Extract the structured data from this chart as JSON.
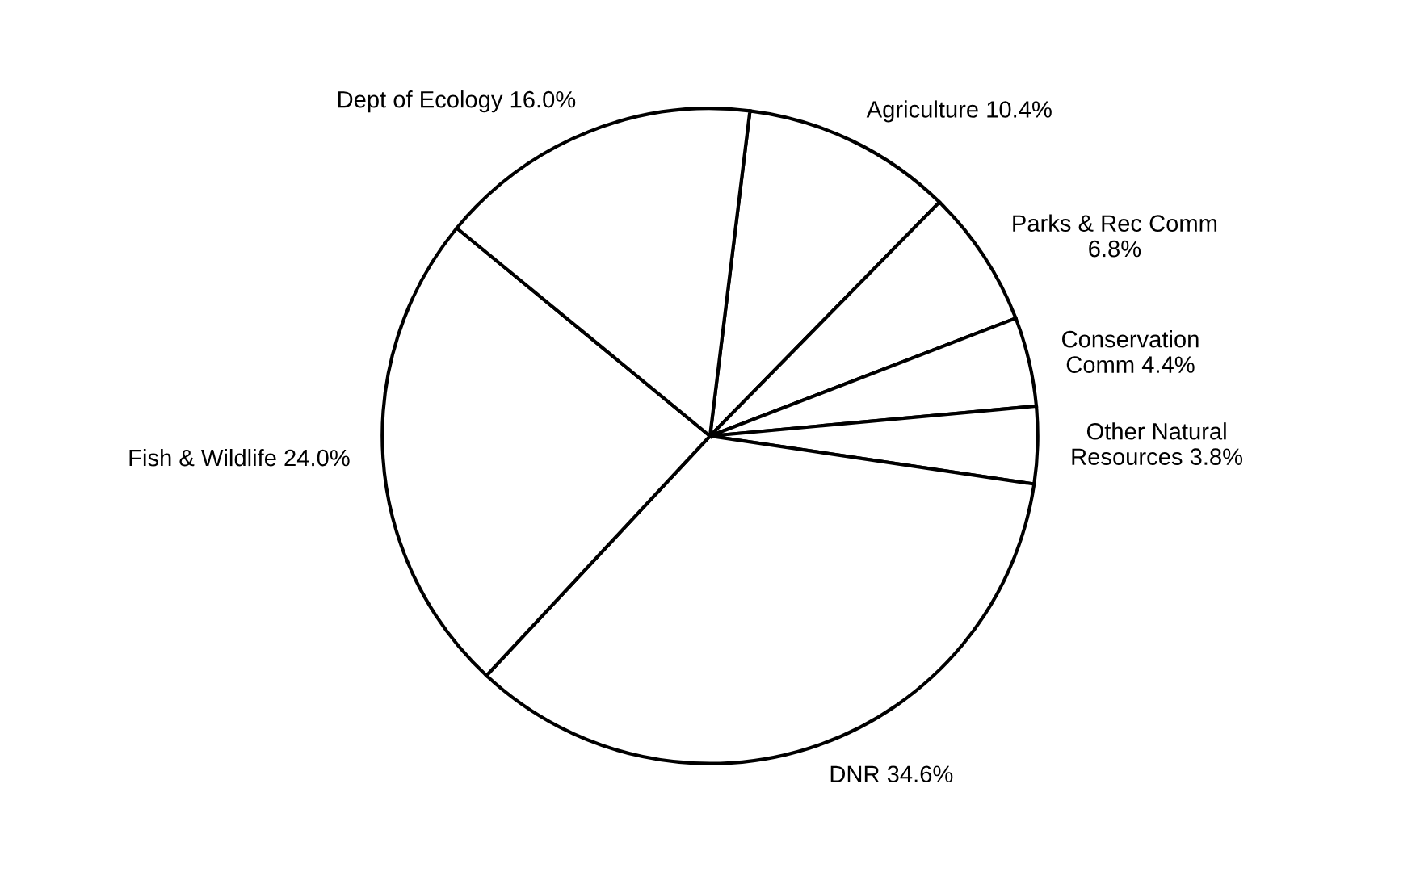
{
  "chart_data": {
    "type": "pie",
    "categories": [
      "Agriculture",
      "Parks & Rec Comm",
      "Conservation Comm",
      "Other Natural Resources",
      "DNR",
      "Fish & Wildlife",
      "Dept of Ecology"
    ],
    "values": [
      10.4,
      6.8,
      4.4,
      3.8,
      34.6,
      24.0,
      16.0
    ],
    "colors": [
      "#ffffff",
      "#ffffff",
      "#ffffff",
      "#ffffff",
      "#ffffff",
      "#ffffff",
      "#ffffff"
    ],
    "value_labels": [
      "10.4%",
      "6.8%",
      "4.4%",
      "3.8%",
      "34.6%",
      "24.0%",
      "16.0%"
    ],
    "legend": false
  }
}
